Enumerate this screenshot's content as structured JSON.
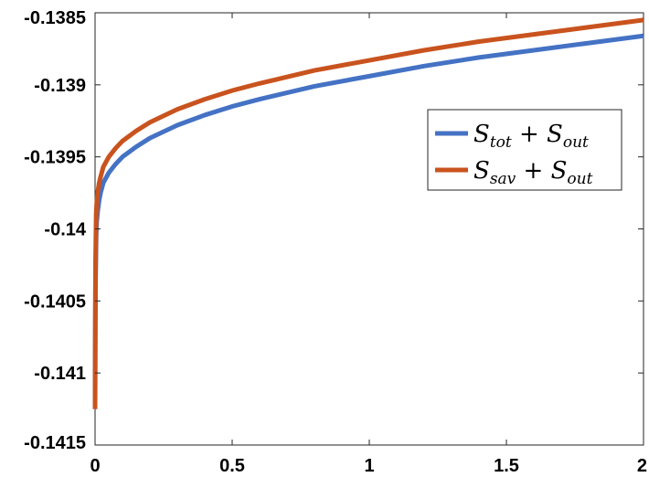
{
  "chart_data": {
    "type": "line",
    "title": "",
    "xlabel": "",
    "ylabel": "",
    "xlim": [
      0,
      2
    ],
    "ylim": [
      -0.1415,
      -0.1385
    ],
    "x_ticks": [
      0,
      0.5,
      1,
      1.5,
      2
    ],
    "x_tick_labels": [
      "0",
      "0.5",
      "1",
      "1.5",
      "2"
    ],
    "y_ticks": [
      -0.1385,
      -0.139,
      -0.1395,
      -0.14,
      -0.1405,
      -0.141,
      -0.1415
    ],
    "y_tick_labels": [
      "-0.1385",
      "-0.139",
      "-0.1395",
      "-0.14",
      "-0.1405",
      "-0.141",
      "-0.1415"
    ],
    "grid": false,
    "legend_position": "top-right",
    "series": [
      {
        "name": "S_tot + S_out",
        "legend": {
          "main": "S",
          "sub": "tot",
          "op": "+",
          "main2": "S",
          "sub2": "out"
        },
        "color": "#4472C4",
        "x": [
          0.0,
          0.0005,
          0.001,
          0.002,
          0.004,
          0.006,
          0.01,
          0.015,
          0.02,
          0.03,
          0.05,
          0.075,
          0.1,
          0.15,
          0.2,
          0.3,
          0.4,
          0.5,
          0.6,
          0.8,
          1.0,
          1.2,
          1.4,
          1.6,
          1.8,
          2.0
        ],
        "y": [
          -0.14125,
          -0.14095,
          -0.1407,
          -0.14035,
          -0.14005,
          -0.13995,
          -0.13987,
          -0.1398,
          -0.13975,
          -0.13968,
          -0.13961,
          -0.13955,
          -0.1395,
          -0.13943,
          -0.13937,
          -0.13928,
          -0.13921,
          -0.13915,
          -0.1391,
          -0.13901,
          -0.13894,
          -0.13887,
          -0.13881,
          -0.13876,
          -0.13871,
          -0.13866
        ]
      },
      {
        "name": "S_sav + S_out",
        "legend": {
          "main": "S",
          "sub": "sav",
          "op": "+",
          "main2": "S",
          "sub2": "out"
        },
        "color": "#C9531E",
        "x": [
          0.0,
          0.0005,
          0.001,
          0.002,
          0.004,
          0.006,
          0.01,
          0.015,
          0.02,
          0.03,
          0.05,
          0.075,
          0.1,
          0.15,
          0.2,
          0.3,
          0.4,
          0.5,
          0.6,
          0.8,
          1.0,
          1.2,
          1.4,
          1.6,
          1.8,
          2.0
        ],
        "y": [
          -0.14125,
          -0.14085,
          -0.1405,
          -0.1402,
          -0.1399,
          -0.13982,
          -0.13974,
          -0.13968,
          -0.13964,
          -0.13957,
          -0.1395,
          -0.13944,
          -0.13939,
          -0.13932,
          -0.13926,
          -0.13917,
          -0.1391,
          -0.13904,
          -0.13899,
          -0.1389,
          -0.13883,
          -0.13876,
          -0.1387,
          -0.13865,
          -0.1386,
          -0.13855
        ]
      }
    ]
  }
}
